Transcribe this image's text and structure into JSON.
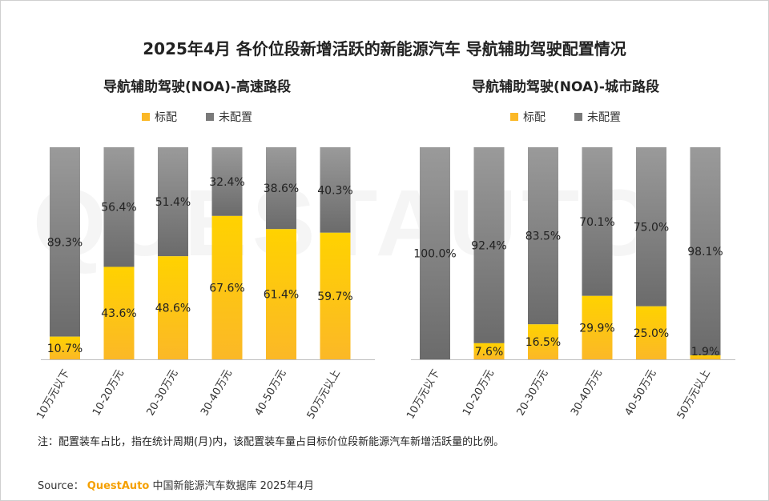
{
  "title": "2025年4月 各价位段新增活跃的新能源汽车 导航辅助驾驶配置情况",
  "watermark": "QUESTAUTO",
  "colors": {
    "standard_top": "#ffd200",
    "standard_bottom": "#fbb827",
    "not_configured_top": "#9a9a9a",
    "not_configured_bottom": "#6b6b6b"
  },
  "chart_data": [
    {
      "type": "bar",
      "stacked": true,
      "percent": true,
      "title": "导航辅助驾驶(NOA)-高速路段",
      "categories": [
        "10万元以下",
        "10-20万元",
        "20-30万元",
        "30-40万元",
        "40-50万元",
        "50万元以上"
      ],
      "series": [
        {
          "name": "标配",
          "values": [
            10.7,
            43.6,
            48.6,
            67.6,
            61.4,
            59.7
          ],
          "labels": [
            "10.7%",
            "43.6%",
            "48.6%",
            "67.6%",
            "61.4%",
            "59.7%"
          ]
        },
        {
          "name": "未配置",
          "values": [
            89.3,
            56.4,
            51.4,
            32.4,
            38.6,
            40.3
          ],
          "labels": [
            "89.3%",
            "56.4%",
            "51.4%",
            "32.4%",
            "38.6%",
            "40.3%"
          ]
        }
      ],
      "ylim": [
        0,
        100
      ],
      "legend": "top"
    },
    {
      "type": "bar",
      "stacked": true,
      "percent": true,
      "title": "导航辅助驾驶(NOA)-城市路段",
      "categories": [
        "10万元以下",
        "10-20万元",
        "20-30万元",
        "30-40万元",
        "40-50万元",
        "50万元以上"
      ],
      "series": [
        {
          "name": "标配",
          "values": [
            0,
            7.6,
            16.5,
            29.9,
            25.0,
            1.9
          ],
          "labels": [
            "",
            "7.6%",
            "16.5%",
            "29.9%",
            "25.0%",
            "1.9%"
          ]
        },
        {
          "name": "未配置",
          "values": [
            100.0,
            92.4,
            83.5,
            70.1,
            75.0,
            98.1
          ],
          "labels": [
            "100.0%",
            "92.4%",
            "83.5%",
            "70.1%",
            "75.0%",
            "98.1%"
          ]
        }
      ],
      "ylim": [
        0,
        100
      ],
      "legend": "top"
    }
  ],
  "note": "注：配置装车占比，指在统计周期(月)内，该配置装车量占目标价位段新能源汽车新增活跃量的比例。",
  "source": {
    "prefix": "Source：",
    "brand": "QuestAuto",
    "text": "中国新能源汽车数据库 2025年4月"
  }
}
